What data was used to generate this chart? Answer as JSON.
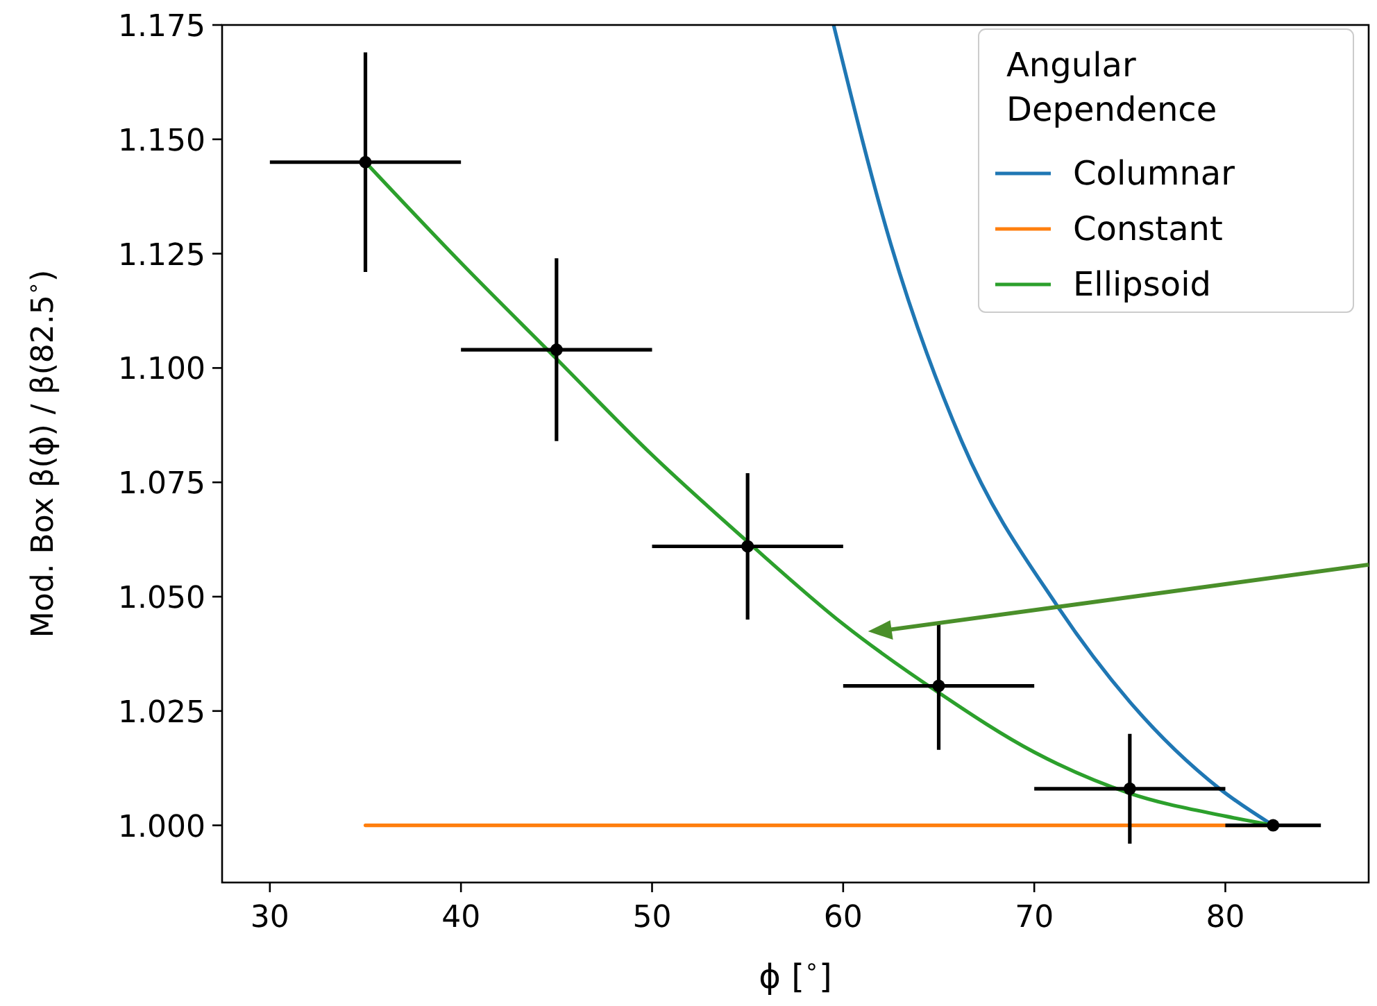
{
  "chart_data": {
    "type": "line",
    "xlabel": "ϕ [$^{∘}$]",
    "ylabel": "Mod. Box β(ϕ) / β(82.5$^{∘}$)",
    "legend_title": "Angular Dependence",
    "legend": "top right",
    "grid": false,
    "xlim": [
      27.5,
      87.5
    ],
    "xticks": [
      30,
      40,
      50,
      60,
      70,
      80
    ],
    "ylim": [
      0.9875,
      1.175
    ],
    "yticks": [
      {
        "value": 1,
        "label": "1.000"
      },
      {
        "value": 1.025,
        "label": "1.025"
      },
      {
        "value": 1.05,
        "label": "1.050"
      },
      {
        "value": 1.075,
        "label": "1.075"
      },
      {
        "value": 1.1,
        "label": "1.100"
      },
      {
        "value": 1.125,
        "label": "1.125"
      },
      {
        "value": 1.15,
        "label": "1.150"
      },
      {
        "value": 1.175,
        "label": "1.175"
      }
    ],
    "series": [
      {
        "name": "Columnar",
        "color": "#1f77b4",
        "x": [
          59.5,
          62.5,
          66.2,
          71.2,
          75,
          79.7,
          82.5
        ],
        "values": [
          1.175,
          1.127,
          1.084,
          1.048,
          1.027,
          1.008,
          1.0
        ]
      },
      {
        "name": "Constant",
        "color": "#ff7f0e",
        "x": [
          35,
          82.5
        ],
        "values": [
          1.0,
          1.0
        ]
      },
      {
        "name": "Ellipsoid",
        "color": "#2ca02c",
        "x": [
          35,
          40,
          45,
          50,
          55,
          60,
          65,
          70,
          75,
          80,
          82.5
        ],
        "values": [
          1.145,
          1.123,
          1.102,
          1.081,
          1.062,
          1.044,
          1.029,
          1.016,
          1.007,
          1.002,
          1.0
        ]
      },
      {
        "color": "#000000",
        "type": "scatter",
        "marker": "circle",
        "x": [
          35,
          45,
          55,
          65,
          75,
          82.5
        ],
        "values": [
          1.145,
          1.104,
          1.061,
          1.0305,
          1.008,
          1.0
        ],
        "errors": [
          0.024,
          0.02,
          0.016,
          0.014,
          0.012,
          null
        ],
        "xerrors": [
          5,
          5,
          5,
          5,
          5,
          2.5
        ]
      }
    ]
  }
}
